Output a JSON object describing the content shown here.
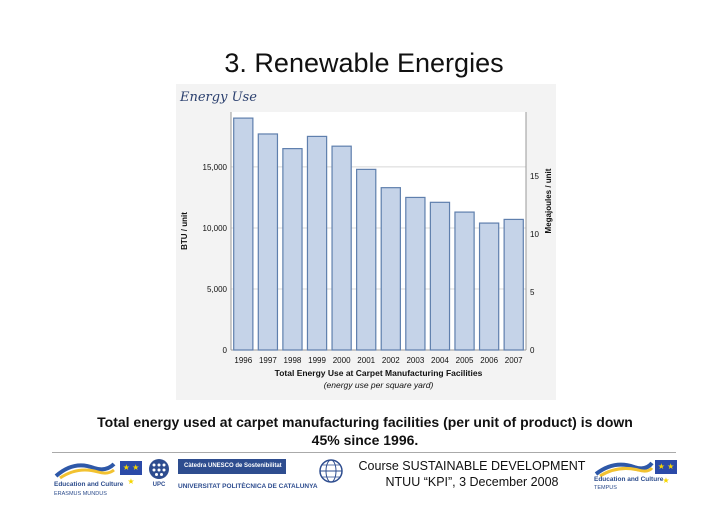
{
  "slide": {
    "title": "3. Renewable Energies",
    "caption_line1": "Total energy used at carpet manufacturing facilities (per unit of product) is down",
    "caption_line2": "45% since 1996."
  },
  "footer": {
    "course_line1": "Course SUSTAINABLE DEVELOPMENT",
    "course_line2": "NTUU “KPI”, 3 December 2008",
    "left_logo_line1": "Education and Culture",
    "left_logo_line2": "ERASMUS MUNDUS",
    "catedra": "Càtedra UNESCO de Sostenibilitat",
    "university": "UNIVERSITAT POLITÈCNICA DE CATALUNYA",
    "upc_label": "UPC",
    "right_logo_line1": "Education and Culture",
    "right_logo_line2": "TEMPUS",
    "eu_flag_stars": "★ ★ ★"
  },
  "chart_data": {
    "type": "bar",
    "title": "Energy Use",
    "categories": [
      "1996",
      "1997",
      "1998",
      "1999",
      "2000",
      "2001",
      "2002",
      "2003",
      "2004",
      "2005",
      "2006",
      "2007"
    ],
    "series": [
      {
        "name": "BTU / unit",
        "values": [
          19000,
          17700,
          16500,
          17500,
          16700,
          14800,
          13300,
          12500,
          12100,
          11300,
          10400,
          10700
        ]
      }
    ],
    "xlabel": "Total Energy Use at Carpet Manufacturing Facilities",
    "xlabel_sub": "(energy use per square yard)",
    "ylabel": "BTU / unit",
    "ylabel_right": "Megajoules / unit",
    "ylim": [
      0,
      19500
    ],
    "yticks": [
      0,
      5000,
      10000,
      15000
    ],
    "ytick_labels": [
      "0",
      "5,000",
      "10,000",
      "15,000"
    ],
    "yticks_right": [
      0,
      5,
      10,
      15
    ],
    "ylim_right": [
      0,
      20.5
    ],
    "colors": {
      "bar_fill": "#c5d3e8",
      "bar_stroke": "#5f7fad",
      "panel": "#f3f3f3",
      "plot_bg": "#ffffff",
      "title": "#2a3f6e"
    }
  }
}
